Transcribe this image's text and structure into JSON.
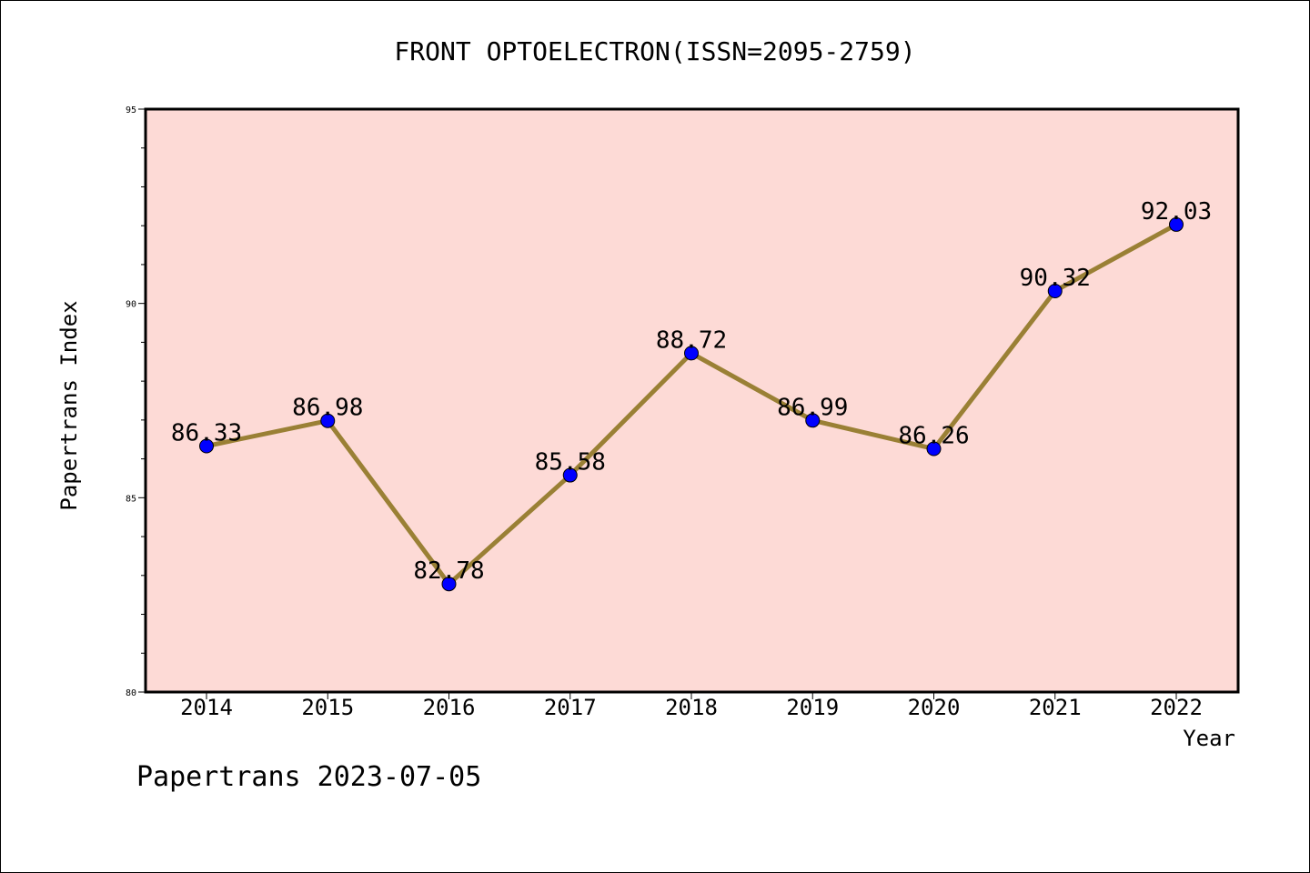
{
  "chart_data": {
    "type": "line",
    "title": "FRONT OPTOELECTRON(ISSN=2095-2759)",
    "xlabel": "Year",
    "ylabel": "Papertrans Index",
    "categories": [
      "2014",
      "2015",
      "2016",
      "2017",
      "2018",
      "2019",
      "2020",
      "2021",
      "2022"
    ],
    "series": [
      {
        "values": [
          86.33,
          86.98,
          82.78,
          85.58,
          88.72,
          86.99,
          86.26,
          90.32,
          92.03
        ],
        "labels": [
          "86.33",
          "86.98",
          "82.78",
          "85.58",
          "88.72",
          "86.99",
          "86.26",
          "90.32",
          "92.03"
        ]
      }
    ],
    "ylim": [
      80,
      95
    ],
    "yticks": [
      "80",
      "85",
      "90",
      "95"
    ],
    "grid": false,
    "colors": {
      "plot_background": "#fddad6",
      "line": "#9a8035",
      "marker": "#0000ff"
    }
  },
  "footer": {
    "text": "Papertrans 2023-07-05"
  }
}
